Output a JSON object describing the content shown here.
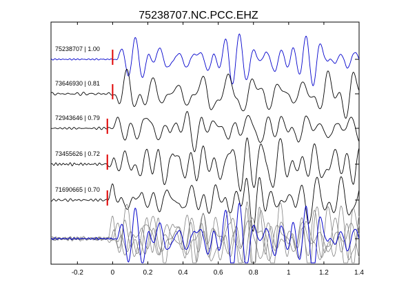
{
  "title": "75238707.NC.PCC.EHZ",
  "chart_data": {
    "type": "line",
    "title": "75238707.NC.PCC.EHZ",
    "xlabel": "",
    "ylabel": "",
    "xlim": [
      -0.35,
      1.4
    ],
    "x_ticks": [
      "-0.2",
      "0",
      "0.2",
      "0.4",
      "0.6",
      "0.8",
      "1",
      "1.2",
      "1.4"
    ],
    "x_tick_values": [
      -0.2,
      0,
      0.2,
      0.4,
      0.6,
      0.8,
      1.0,
      1.2,
      1.4
    ],
    "grid": false,
    "series": [
      {
        "label": "75238707 | 1.00",
        "event_id": "75238707",
        "correlation": 1.0,
        "pick_time": 0.0,
        "color": "#0000cc"
      },
      {
        "label": "73646930 | 0.81",
        "event_id": "73646930",
        "correlation": 0.81,
        "pick_time": 0.0,
        "color": "#000000"
      },
      {
        "label": "72943646 | 0.79",
        "event_id": "72943646",
        "correlation": 0.79,
        "pick_time": -0.03,
        "color": "#000000"
      },
      {
        "label": "73455626 | 0.72",
        "event_id": "73455626",
        "correlation": 0.72,
        "pick_time": -0.03,
        "color": "#000000"
      },
      {
        "label": "71690665 | 0.70",
        "event_id": "71690665",
        "correlation": 0.7,
        "pick_time": -0.03,
        "color": "#000000"
      }
    ],
    "stack": {
      "colors": [
        "#808080",
        "#0000cc"
      ]
    },
    "pick_color": "#e00000"
  }
}
